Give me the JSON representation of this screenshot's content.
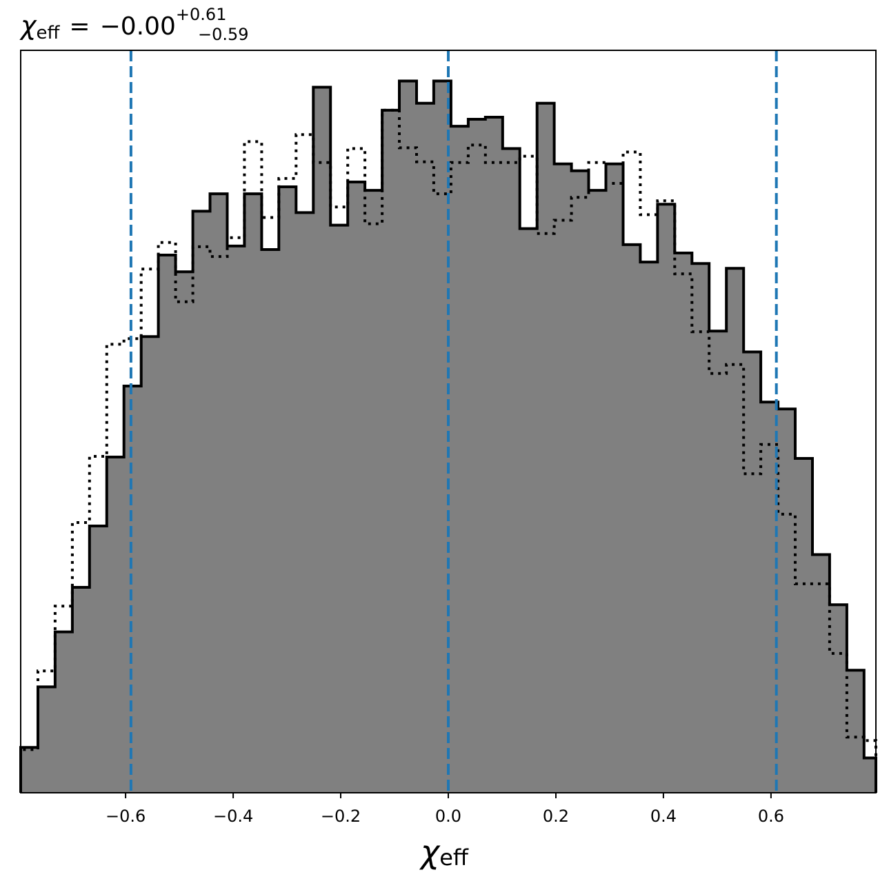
{
  "chart_data": {
    "type": "histogram",
    "title": {
      "symbol": "χ",
      "subscript": "eff",
      "equals": "=",
      "median": "−0.00",
      "upper": "+0.61",
      "lower": "−0.59"
    },
    "xlabel": {
      "symbol": "χ",
      "subscript": "eff"
    },
    "ylabel": "",
    "xlim": [
      -0.795,
      0.795
    ],
    "ylim": [
      0,
      1.066
    ],
    "x_ticks": [
      {
        "value": -0.6,
        "label": "−0.6"
      },
      {
        "value": -0.4,
        "label": "−0.4"
      },
      {
        "value": -0.2,
        "label": "−0.2"
      },
      {
        "value": 0.0,
        "label": "0.0"
      },
      {
        "value": 0.2,
        "label": "0.2"
      },
      {
        "value": 0.4,
        "label": "0.4"
      },
      {
        "value": 0.6,
        "label": "0.6"
      }
    ],
    "grid": false,
    "y_ticks_shown": false,
    "bin_edges": [
      -0.795,
      -0.763,
      -0.731,
      -0.699,
      -0.667,
      -0.635,
      -0.603,
      -0.571,
      -0.539,
      -0.507,
      -0.475,
      -0.443,
      -0.411,
      -0.379,
      -0.347,
      -0.315,
      -0.283,
      -0.251,
      -0.219,
      -0.187,
      -0.155,
      -0.123,
      -0.091,
      -0.059,
      -0.027,
      0.005,
      0.037,
      0.069,
      0.101,
      0.133,
      0.165,
      0.197,
      0.229,
      0.261,
      0.293,
      0.325,
      0.357,
      0.389,
      0.421,
      0.453,
      0.485,
      0.517,
      0.549,
      0.581,
      0.613,
      0.645,
      0.677,
      0.709,
      0.741,
      0.773,
      0.795
    ],
    "series": [
      {
        "style": "filled-step",
        "fill_color": "#808080",
        "line_color": "#000000",
        "values": [
          0.065,
          0.152,
          0.231,
          0.295,
          0.383,
          0.482,
          0.584,
          0.655,
          0.772,
          0.748,
          0.835,
          0.86,
          0.785,
          0.86,
          0.78,
          0.87,
          0.833,
          1.013,
          0.815,
          0.877,
          0.865,
          0.98,
          1.022,
          0.99,
          1.022,
          0.957,
          0.967,
          0.97,
          0.925,
          0.81,
          0.99,
          0.903,
          0.893,
          0.865,
          0.903,
          0.787,
          0.762,
          0.845,
          0.775,
          0.76,
          0.663,
          0.753,
          0.633,
          0.561,
          0.551,
          0.48,
          0.342,
          0.27,
          0.176,
          0.05
        ]
      },
      {
        "style": "dotted-step",
        "line_color": "#000000",
        "values": [
          0.062,
          0.175,
          0.268,
          0.388,
          0.483,
          0.644,
          0.652,
          0.752,
          0.79,
          0.705,
          0.784,
          0.77,
          0.797,
          0.935,
          0.826,
          0.882,
          0.945,
          0.905,
          0.841,
          0.925,
          0.817,
          0.98,
          0.926,
          0.906,
          0.86,
          0.905,
          0.93,
          0.905,
          0.905,
          0.914,
          0.803,
          0.822,
          0.855,
          0.905,
          0.875,
          0.92,
          0.83,
          0.85,
          0.745,
          0.662,
          0.602,
          0.615,
          0.458,
          0.5,
          0.4,
          0.3,
          0.3,
          0.2,
          0.08,
          0.075
        ]
      }
    ],
    "vlines": [
      {
        "x": -0.59,
        "color": "#1f77b4",
        "style": "dashed"
      },
      {
        "x": 0.0,
        "color": "#1f77b4",
        "style": "dashed"
      },
      {
        "x": 0.61,
        "color": "#1f77b4",
        "style": "dashed"
      }
    ]
  }
}
